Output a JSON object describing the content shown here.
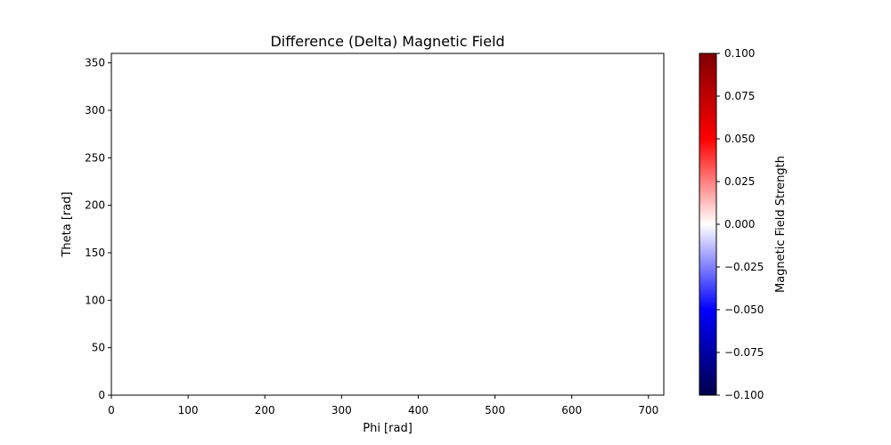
{
  "chart_data": {
    "type": "heatmap",
    "title": "Difference (Delta) Magnetic Field",
    "xlabel": "Phi [rad]",
    "ylabel": "Theta [rad]",
    "xlim": [
      0,
      720
    ],
    "ylim": [
      0,
      360
    ],
    "x_ticks": [
      0,
      100,
      200,
      300,
      400,
      500,
      600,
      700
    ],
    "y_ticks": [
      0,
      50,
      100,
      150,
      200,
      250,
      300,
      350
    ],
    "values": [],
    "grid": false,
    "colorbar": {
      "label": "Magnetic Field Strength",
      "colormap": "seismic",
      "vmin": -0.1,
      "vmax": 0.1,
      "ticks": [
        -0.1,
        -0.075,
        -0.05,
        -0.025,
        0.0,
        0.025,
        0.05,
        0.075,
        0.1
      ],
      "tick_labels": [
        "−0.100",
        "−0.075",
        "−0.050",
        "−0.025",
        "0.000",
        "0.025",
        "0.050",
        "0.075",
        "0.100"
      ],
      "colors": [
        "#00004c",
        "#0000ff",
        "#ffffff",
        "#ff0000",
        "#7f0000"
      ]
    }
  }
}
